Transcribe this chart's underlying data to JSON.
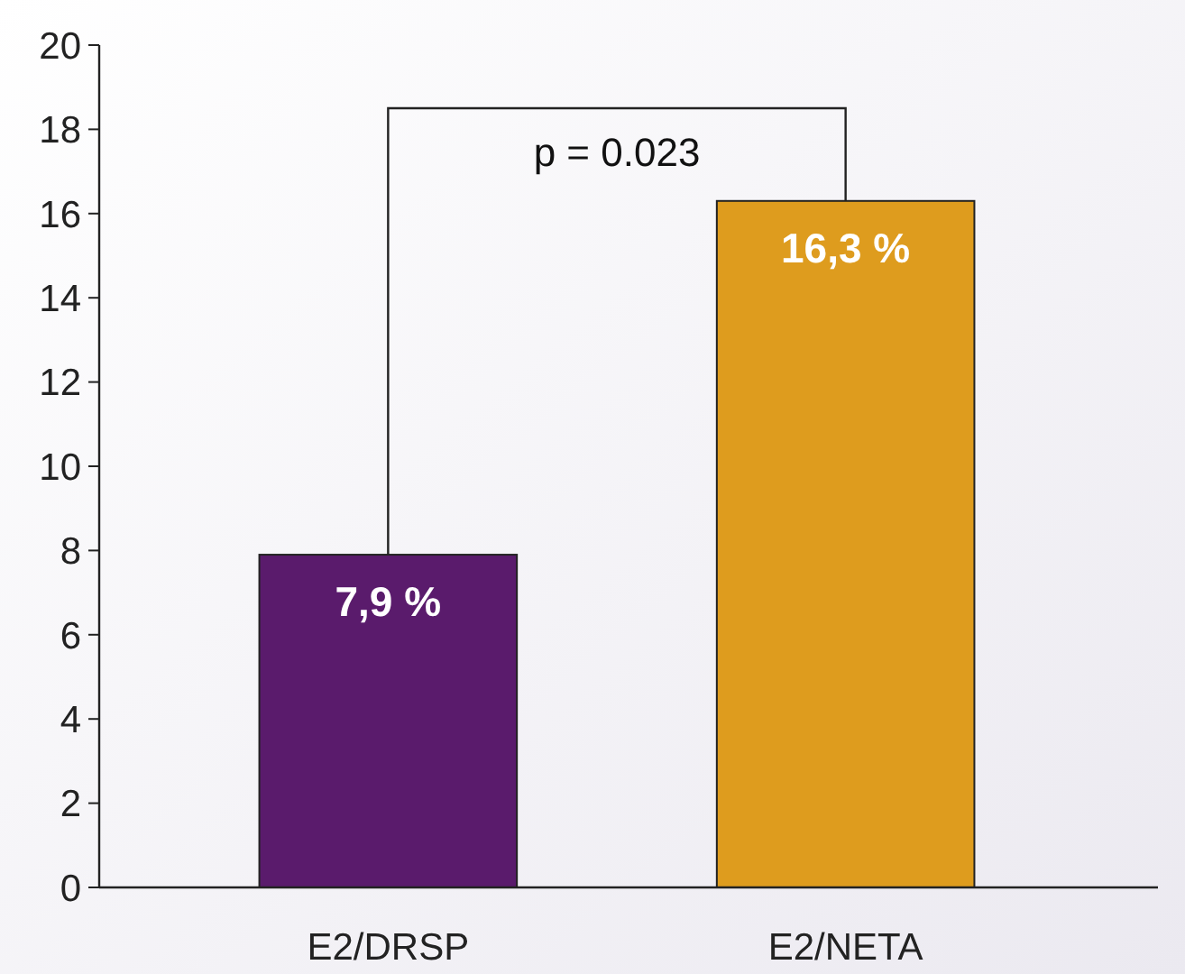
{
  "chart_data": {
    "type": "bar",
    "categories": [
      "E2/DRSP",
      "E2/NETA"
    ],
    "values": [
      7.9,
      16.3
    ],
    "colors": [
      "#5a1b6c",
      "#de9c1e"
    ],
    "value_labels": [
      "7,9 %",
      "16,3 %"
    ],
    "ylim": [
      0,
      20
    ],
    "yticks": [
      0,
      2,
      4,
      6,
      8,
      10,
      12,
      14,
      16,
      18,
      20
    ],
    "annotations": [
      "p = 0.023"
    ]
  }
}
